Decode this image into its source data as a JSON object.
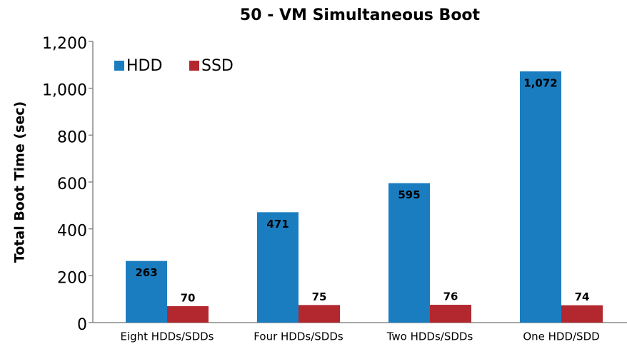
{
  "chart_data": {
    "type": "bar",
    "title": "50 - VM Simultaneous Boot",
    "y_label": "Total Boot Time (sec)",
    "categories": [
      "Eight HDDs/SDDs",
      "Four HDDs/SDDs",
      "Two HDDs/SDDs",
      "One HDD/SDD"
    ],
    "series": [
      {
        "name": "HDD",
        "color": "#1a7dc0",
        "values": [
          263,
          471,
          595,
          1072
        ],
        "value_labels": [
          "263",
          "471",
          "595",
          "1,072"
        ]
      },
      {
        "name": "SSD",
        "color": "#b3282e",
        "values": [
          70,
          75,
          76,
          74
        ]
      }
    ],
    "ylim": [
      0,
      1200
    ],
    "yticks": [
      0,
      200,
      400,
      600,
      800,
      {
        "value": 1000,
        "label": "1,000"
      },
      {
        "value": 1200,
        "label": "1,200"
      }
    ],
    "legend": "top-left"
  }
}
